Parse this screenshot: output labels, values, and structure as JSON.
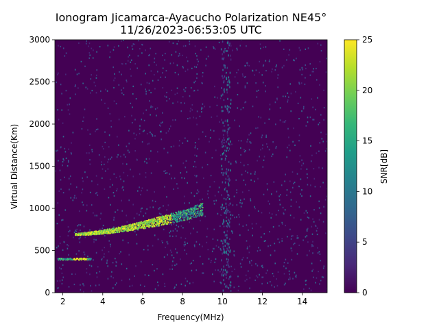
{
  "chart_data": {
    "type": "heatmap",
    "title": "Ionogram Jicamarca-Ayacucho Polarization NE45°",
    "subtitle": "11/26/2023-06:53:05 UTC",
    "xlabel": "Frequency(MHz)",
    "ylabel": "Virtual Distance(Km)",
    "xlim": [
      1.6,
      15.25
    ],
    "ylim": [
      0,
      3000
    ],
    "xticks": [
      2,
      4,
      6,
      8,
      10,
      12,
      14
    ],
    "yticks": [
      0,
      500,
      1000,
      1500,
      2000,
      2500,
      3000
    ],
    "colorbar": {
      "label": "SNR[dB]",
      "range": [
        0,
        25
      ],
      "ticks": [
        0,
        5,
        10,
        15,
        20,
        25
      ],
      "colormap": "viridis"
    },
    "grid": false,
    "features": [
      {
        "name": "F-layer trace",
        "x_range": [
          2.6,
          9.0
        ],
        "y_range": [
          680,
          1050
        ],
        "snr_peak": 25
      },
      {
        "name": "E-layer echo",
        "x_range": [
          1.7,
          3.4
        ],
        "y_range": [
          380,
          400
        ],
        "snr_peak": 25
      },
      {
        "name": "interference band",
        "x_range": [
          9.9,
          10.4
        ],
        "y_range": [
          0,
          3000
        ],
        "snr_peak": 12
      }
    ]
  },
  "colors": {
    "background": "#440154",
    "viridis": [
      "#440154",
      "#482878",
      "#3e4989",
      "#31688e",
      "#26828e",
      "#1f9e89",
      "#35b779",
      "#6ece58",
      "#b5de2b",
      "#fde725"
    ]
  }
}
